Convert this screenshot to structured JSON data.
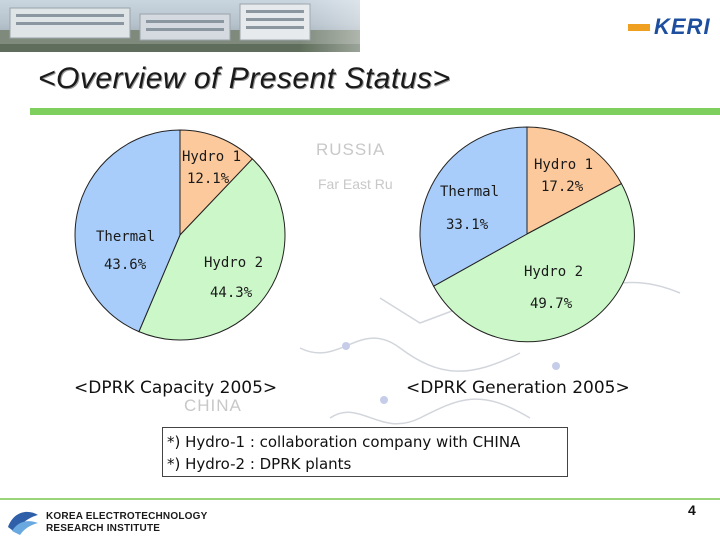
{
  "slide": {
    "title": "<Overview of Present Status>",
    "logo_text": "KERI",
    "page_number": "4",
    "footer_line1": "KOREA ELECTROTECHNOLOGY",
    "footer_line2": "RESEARCH INSTITUTE"
  },
  "background_map": {
    "labels": [
      "RUSSIA",
      "Far East Ru",
      "CHINA"
    ]
  },
  "colors": {
    "hydro1": "#fbc99b",
    "hydro2": "#ccf7c8",
    "thermal": "#a8cdfa",
    "accent_rule": "#7fcf5f"
  },
  "notes": [
    "*) Hydro-1 : collaboration company with CHINA",
    "*) Hydro-2 : DPRK plants"
  ],
  "chart_data": [
    {
      "type": "pie",
      "title": "<DPRK Capacity 2005>",
      "slices": [
        {
          "name": "Hydro 1",
          "value": 12.1,
          "label": "12.1%",
          "color": "#fbc99b"
        },
        {
          "name": "Hydro 2",
          "value": 44.3,
          "label": "44.3%",
          "color": "#ccf7c8"
        },
        {
          "name": "Thermal",
          "value": 43.6,
          "label": "43.6%",
          "color": "#a8cdfa"
        }
      ]
    },
    {
      "type": "pie",
      "title": "<DPRK Generation 2005>",
      "slices": [
        {
          "name": "Hydro 1",
          "value": 17.2,
          "label": "17.2%",
          "color": "#fbc99b"
        },
        {
          "name": "Hydro 2",
          "value": 49.7,
          "label": "49.7%",
          "color": "#ccf7c8"
        },
        {
          "name": "Thermal",
          "value": 33.1,
          "label": "33.1%",
          "color": "#a8cdfa"
        }
      ]
    }
  ]
}
